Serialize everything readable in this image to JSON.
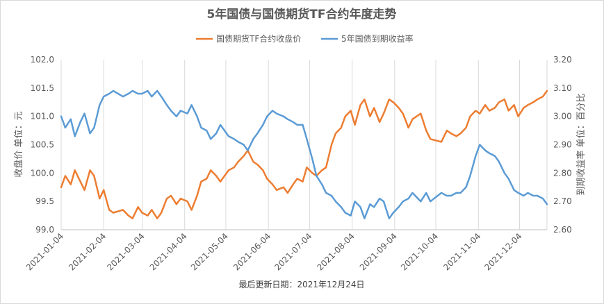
{
  "chart_data": {
    "type": "line",
    "title": "5年国债与国债期货TF合约年度走势",
    "footer": "最后更新日期：2021年12月24日",
    "legend_position": "top-center",
    "grid": "vertical",
    "colors": {
      "futures": "#ED7D31",
      "yield": "#5B9BD5"
    },
    "y_left": {
      "label": "收盘价 单位：元",
      "ylim": [
        99.0,
        102.0
      ],
      "ticks": [
        "99.0",
        "99.5",
        "100.0",
        "100.5",
        "101.0",
        "101.5",
        "102.0"
      ]
    },
    "y_right": {
      "label": "到期收益率 单位：百分比",
      "ylim": [
        2.6,
        3.2
      ],
      "ticks": [
        "2.60",
        "2.70",
        "2.80",
        "2.90",
        "3.00",
        "3.10",
        "3.20"
      ]
    },
    "x_range": [
      "2021-01-04",
      "2021-12-24"
    ],
    "x_ticks": [
      "2021-01-04",
      "2021-02-04",
      "2021-03-04",
      "2021-04-04",
      "2021-05-04",
      "2021-06-04",
      "2021-07-04",
      "2021-08-04",
      "2021-09-04",
      "2021-10-04",
      "2021-11-04",
      "2021-12-04"
    ],
    "series": [
      {
        "name": "国债期货TF合约收盘价",
        "axis": "left",
        "x": [
          "2021-01-04",
          "2021-01-07",
          "2021-01-11",
          "2021-01-14",
          "2021-01-18",
          "2021-01-21",
          "2021-01-25",
          "2021-01-28",
          "2021-02-01",
          "2021-02-04",
          "2021-02-08",
          "2021-02-11",
          "2021-02-18",
          "2021-02-22",
          "2021-02-25",
          "2021-03-01",
          "2021-03-04",
          "2021-03-08",
          "2021-03-11",
          "2021-03-15",
          "2021-03-18",
          "2021-03-22",
          "2021-03-25",
          "2021-03-29",
          "2021-04-01",
          "2021-04-06",
          "2021-04-09",
          "2021-04-13",
          "2021-04-16",
          "2021-04-20",
          "2021-04-23",
          "2021-04-27",
          "2021-04-30",
          "2021-05-06",
          "2021-05-10",
          "2021-05-13",
          "2021-05-17",
          "2021-05-20",
          "2021-05-24",
          "2021-05-27",
          "2021-05-31",
          "2021-06-03",
          "2021-06-07",
          "2021-06-10",
          "2021-06-15",
          "2021-06-18",
          "2021-06-22",
          "2021-06-25",
          "2021-06-29",
          "2021-07-02",
          "2021-07-06",
          "2021-07-09",
          "2021-07-13",
          "2021-07-16",
          "2021-07-20",
          "2021-07-23",
          "2021-07-27",
          "2021-07-30",
          "2021-08-03",
          "2021-08-06",
          "2021-08-10",
          "2021-08-13",
          "2021-08-17",
          "2021-08-20",
          "2021-08-24",
          "2021-08-27",
          "2021-08-31",
          "2021-09-03",
          "2021-09-07",
          "2021-09-10",
          "2021-09-14",
          "2021-09-17",
          "2021-09-23",
          "2021-09-27",
          "2021-09-30",
          "2021-10-08",
          "2021-10-12",
          "2021-10-15",
          "2021-10-19",
          "2021-10-22",
          "2021-10-26",
          "2021-10-29",
          "2021-11-02",
          "2021-11-05",
          "2021-11-09",
          "2021-11-12",
          "2021-11-16",
          "2021-11-19",
          "2021-11-23",
          "2021-11-26",
          "2021-11-30",
          "2021-12-03",
          "2021-12-07",
          "2021-12-10",
          "2021-12-14",
          "2021-12-17",
          "2021-12-21",
          "2021-12-24"
        ],
        "values": [
          99.75,
          99.95,
          99.8,
          100.05,
          99.85,
          99.7,
          100.05,
          99.95,
          99.55,
          99.7,
          99.35,
          99.3,
          99.35,
          99.25,
          99.2,
          99.4,
          99.3,
          99.25,
          99.35,
          99.2,
          99.3,
          99.55,
          99.6,
          99.45,
          99.55,
          99.5,
          99.35,
          99.6,
          99.85,
          99.9,
          100.05,
          99.95,
          99.85,
          100.05,
          100.1,
          100.2,
          100.3,
          100.4,
          100.2,
          100.15,
          100.05,
          99.9,
          99.8,
          99.7,
          99.75,
          99.65,
          99.8,
          99.9,
          99.85,
          100.1,
          100.0,
          99.95,
          100.05,
          100.1,
          100.5,
          100.7,
          100.8,
          101.0,
          101.1,
          100.85,
          101.2,
          101.3,
          101.0,
          101.15,
          100.9,
          101.05,
          101.3,
          101.25,
          101.15,
          101.05,
          100.8,
          100.95,
          101.05,
          100.75,
          100.6,
          100.55,
          100.75,
          100.7,
          100.65,
          100.7,
          100.8,
          101.0,
          101.1,
          101.05,
          101.2,
          101.1,
          101.15,
          101.25,
          101.3,
          101.1,
          101.2,
          101.0,
          101.15,
          101.2,
          101.25,
          101.3,
          101.35,
          101.45
        ]
      },
      {
        "name": "5年国债到期收益率",
        "axis": "right",
        "x": [
          "2021-01-04",
          "2021-01-07",
          "2021-01-11",
          "2021-01-14",
          "2021-01-18",
          "2021-01-21",
          "2021-01-25",
          "2021-01-28",
          "2021-02-01",
          "2021-02-04",
          "2021-02-08",
          "2021-02-11",
          "2021-02-18",
          "2021-02-22",
          "2021-02-25",
          "2021-03-01",
          "2021-03-04",
          "2021-03-08",
          "2021-03-11",
          "2021-03-15",
          "2021-03-18",
          "2021-03-22",
          "2021-03-25",
          "2021-03-29",
          "2021-04-01",
          "2021-04-06",
          "2021-04-09",
          "2021-04-13",
          "2021-04-16",
          "2021-04-20",
          "2021-04-23",
          "2021-04-27",
          "2021-04-30",
          "2021-05-06",
          "2021-05-10",
          "2021-05-13",
          "2021-05-17",
          "2021-05-20",
          "2021-05-24",
          "2021-05-27",
          "2021-05-31",
          "2021-06-03",
          "2021-06-07",
          "2021-06-10",
          "2021-06-15",
          "2021-06-18",
          "2021-06-22",
          "2021-06-25",
          "2021-06-29",
          "2021-07-02",
          "2021-07-06",
          "2021-07-09",
          "2021-07-13",
          "2021-07-16",
          "2021-07-20",
          "2021-07-23",
          "2021-07-27",
          "2021-07-30",
          "2021-08-03",
          "2021-08-06",
          "2021-08-10",
          "2021-08-13",
          "2021-08-17",
          "2021-08-20",
          "2021-08-24",
          "2021-08-27",
          "2021-08-31",
          "2021-09-03",
          "2021-09-07",
          "2021-09-10",
          "2021-09-14",
          "2021-09-17",
          "2021-09-23",
          "2021-09-27",
          "2021-09-30",
          "2021-10-08",
          "2021-10-12",
          "2021-10-15",
          "2021-10-19",
          "2021-10-22",
          "2021-10-26",
          "2021-10-29",
          "2021-11-02",
          "2021-11-05",
          "2021-11-09",
          "2021-11-12",
          "2021-11-16",
          "2021-11-19",
          "2021-11-23",
          "2021-11-26",
          "2021-11-30",
          "2021-12-03",
          "2021-12-07",
          "2021-12-10",
          "2021-12-14",
          "2021-12-17",
          "2021-12-21",
          "2021-12-24"
        ],
        "values": [
          3.0,
          2.96,
          2.99,
          2.93,
          2.98,
          3.01,
          2.94,
          2.96,
          3.04,
          3.07,
          3.08,
          3.09,
          3.07,
          3.08,
          3.09,
          3.08,
          3.08,
          3.09,
          3.07,
          3.09,
          3.07,
          3.04,
          3.02,
          3.0,
          3.02,
          3.01,
          3.04,
          3.0,
          2.96,
          2.95,
          2.92,
          2.94,
          2.97,
          2.93,
          2.92,
          2.91,
          2.9,
          2.88,
          2.92,
          2.94,
          2.97,
          3.0,
          3.02,
          3.01,
          3.0,
          2.99,
          2.98,
          2.97,
          2.97,
          2.92,
          2.85,
          2.79,
          2.76,
          2.73,
          2.72,
          2.7,
          2.68,
          2.66,
          2.65,
          2.7,
          2.68,
          2.64,
          2.69,
          2.68,
          2.71,
          2.7,
          2.64,
          2.66,
          2.68,
          2.7,
          2.71,
          2.73,
          2.7,
          2.73,
          2.7,
          2.73,
          2.72,
          2.72,
          2.73,
          2.73,
          2.75,
          2.79,
          2.86,
          2.9,
          2.88,
          2.87,
          2.86,
          2.84,
          2.8,
          2.78,
          2.74,
          2.73,
          2.72,
          2.73,
          2.72,
          2.72,
          2.71,
          2.69
        ]
      }
    ]
  }
}
